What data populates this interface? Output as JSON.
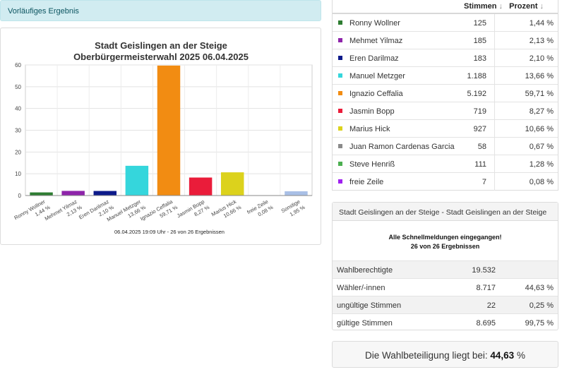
{
  "banner": {
    "label": "Vorläufiges Ergebnis"
  },
  "chart_data": {
    "type": "bar",
    "title": "Stadt Geislingen an der Steige",
    "subtitle": "Oberbürgermeisterwahl 2025 06.04.2025",
    "footer": "06.04.2025 19:09 Uhr - 26 von 26 Ergebnissen",
    "categories": [
      "Ronny Wollner",
      "Mehmet Yilmaz",
      "Eren Darilmaz",
      "Manuel Metzger",
      "Ignazio Ceffalia",
      "Jasmin Bopp",
      "Marius Hick",
      "freie Zeile",
      "Sonstige"
    ],
    "category_labels": [
      "1,44 %",
      "2,13 %",
      "2,10 %",
      "13,66 %",
      "59,71 %",
      "8,27 %",
      "10,66 %",
      "0,08 %",
      "1,95 %"
    ],
    "values": [
      1.44,
      2.13,
      2.1,
      13.66,
      59.71,
      8.27,
      10.66,
      0.08,
      1.95
    ],
    "colors": [
      "#2e7d32",
      "#8e24aa",
      "#0d1a8a",
      "#35d6dc",
      "#f28c12",
      "#ea1c3a",
      "#dcd21c",
      "#a020f0",
      "#a9bfe6"
    ],
    "yticks": [
      0,
      10,
      20,
      30,
      40,
      50,
      60
    ],
    "ylim": [
      0,
      60
    ],
    "grid": true
  },
  "table": {
    "col_votes": "Stimmen",
    "col_pct": "Prozent",
    "sort_icon": "↓",
    "rows": [
      {
        "name": "Ronny Wollner",
        "votes": "125",
        "pct": "1,44 %",
        "color": "#2e7d32"
      },
      {
        "name": "Mehmet Yilmaz",
        "votes": "185",
        "pct": "2,13 %",
        "color": "#8e24aa"
      },
      {
        "name": "Eren Darilmaz",
        "votes": "183",
        "pct": "2,10 %",
        "color": "#0d1a8a"
      },
      {
        "name": "Manuel Metzger",
        "votes": "1.188",
        "pct": "13,66 %",
        "color": "#35d6dc"
      },
      {
        "name": "Ignazio Ceffalia",
        "votes": "5.192",
        "pct": "59,71 %",
        "color": "#f28c12"
      },
      {
        "name": "Jasmin Bopp",
        "votes": "719",
        "pct": "8,27 %",
        "color": "#ea1c3a"
      },
      {
        "name": "Marius Hick",
        "votes": "927",
        "pct": "10,66 %",
        "color": "#dcd21c"
      },
      {
        "name": "Juan Ramon Cardenas Garcia",
        "votes": "58",
        "pct": "0,67 %",
        "color": "#8a8a8a"
      },
      {
        "name": "Steve Henriß",
        "votes": "111",
        "pct": "1,28 %",
        "color": "#4caf50"
      },
      {
        "name": "freie Zeile",
        "votes": "7",
        "pct": "0,08 %",
        "color": "#a020f0"
      }
    ]
  },
  "summary": {
    "header": "Stadt Geislingen an der Steige - Stadt Geislingen an der Steige",
    "note_line1": "Alle Schnellmeldungen eingegangen!",
    "note_line2": "26 von 26 Ergebnissen",
    "rows": [
      {
        "label": "Wahlberechtigte",
        "value": "19.532",
        "pct": ""
      },
      {
        "label": "Wähler/-innen",
        "value": "8.717",
        "pct": "44,63 %"
      },
      {
        "label": "ungültige Stimmen",
        "value": "22",
        "pct": "0,25 %"
      },
      {
        "label": "gültige Stimmen",
        "value": "8.695",
        "pct": "99,75 %"
      }
    ]
  },
  "turnout": {
    "prefix": "Die Wahlbeteiligung liegt bei:",
    "value": "44,63",
    "suffix": "%"
  }
}
